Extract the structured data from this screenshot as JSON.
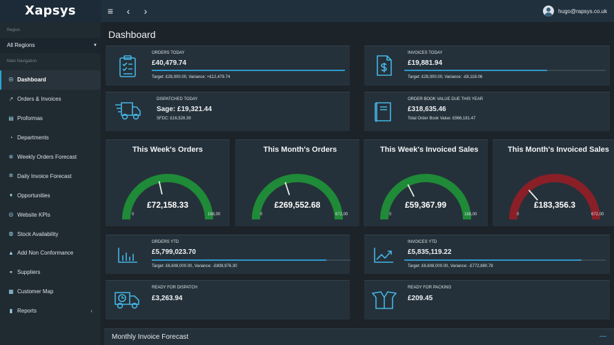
{
  "brand": "Xapsys",
  "topbar": {
    "menu": "≡",
    "back": "‹",
    "forward": "›",
    "user_email": "hugo@rapsys.co.uk"
  },
  "sidebar": {
    "region_label": "Region",
    "region_value": "All Regions",
    "nav_label": "Main Navigation",
    "items": [
      {
        "label": "Dashboard",
        "icon": "☉"
      },
      {
        "label": "Orders & Invoices",
        "icon": "↗"
      },
      {
        "label": "Proformas",
        "icon": "▤"
      },
      {
        "label": "Departments",
        "icon": "◔"
      },
      {
        "label": "Weekly Orders Forecast",
        "icon": "✲"
      },
      {
        "label": "Daily Invoice Forecast",
        "icon": "✲"
      },
      {
        "label": "Opportunities",
        "icon": "♦"
      },
      {
        "label": "Website KPIs",
        "icon": "◎"
      },
      {
        "label": "Stock Availability",
        "icon": "◍"
      },
      {
        "label": "Add Non Conformance",
        "icon": "▲"
      },
      {
        "label": "Suppliers",
        "icon": "⚭"
      },
      {
        "label": "Customer Map",
        "icon": "▦"
      },
      {
        "label": "Reports",
        "icon": "▮"
      }
    ]
  },
  "page": {
    "title": "Dashboard"
  },
  "stats": {
    "orders_today": {
      "label": "ORDERS TODAY",
      "value": "£40,479.74",
      "sub": "Target: £28,000.00, Variance: +£12,479.74",
      "progress": 1.0
    },
    "invoices_today": {
      "label": "INVOICES TODAY",
      "value": "£19,881.94",
      "sub": "Target: £28,000.00, Variance: -£8,118.06",
      "progress": 0.71
    },
    "dispatched_today": {
      "label": "DISPATCHED TODAY",
      "value": "Sage: £19,321.44",
      "sub": "SFDC: £16,528.39"
    },
    "order_book": {
      "label": "ORDER BOOK VALUE DUE THIS YEAR",
      "value": "£318,635.46",
      "sub": "Total Order Book Value: £966,181.47"
    },
    "orders_ytd": {
      "label": "ORDERS YTD",
      "value": "£5,799,023.70",
      "sub": "Target: £6,608,000.00, Variance: -£808,976.30",
      "progress": 0.88
    },
    "invoices_ytd": {
      "label": "INVOICES YTD",
      "value": "£5,835,119.22",
      "sub": "Target: £6,608,000.00, Variance: -£772,880.78",
      "progress": 0.88
    },
    "ready_dispatch": {
      "label": "READY FOR DISPATCH",
      "value": "£3,263.94"
    },
    "ready_packing": {
      "label": "READY FOR PACKING",
      "value": "£209.45"
    }
  },
  "gauges": [
    {
      "title": "This Week's Orders",
      "value": "£72,158.33",
      "min": "0",
      "max": "168,00",
      "fraction": 0.43,
      "color": "#1f8a37"
    },
    {
      "title": "This Month's Orders",
      "value": "£269,552.68",
      "min": "0",
      "max": "672,00",
      "fraction": 0.4,
      "color": "#1f8a37"
    },
    {
      "title": "This Week's Invoiced Sales",
      "value": "£59,367.99",
      "min": "0",
      "max": "168,00",
      "fraction": 0.35,
      "color": "#1f8a37"
    },
    {
      "title": "This Month's Invoiced Sales",
      "value": "£183,356.3",
      "min": "0",
      "max": "672,00",
      "fraction": 0.27,
      "color": "#8a1f28"
    }
  ],
  "forecast": {
    "title": "Monthly Invoice Forecast",
    "collapse": "—"
  }
}
